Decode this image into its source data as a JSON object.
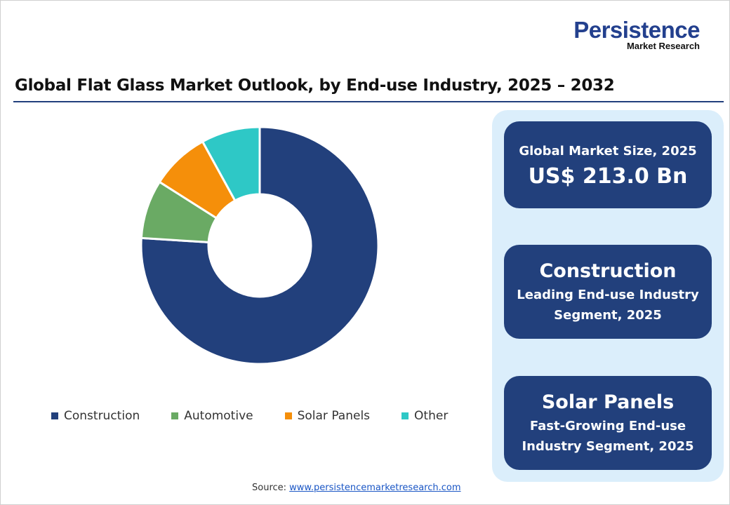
{
  "logo": {
    "line1": "Persistence",
    "line2": "Market Research"
  },
  "title": "Global Flat Glass Market Outlook, by End-use Industry, 2025 – 2032",
  "chart_data": {
    "type": "pie",
    "donut": true,
    "categories": [
      "Construction",
      "Automotive",
      "Solar Panels",
      "Other"
    ],
    "values": [
      76,
      8,
      8,
      8
    ],
    "colors": [
      "#22407c",
      "#6aaa64",
      "#f58f0a",
      "#2ec8c6"
    ],
    "legend": "bottom"
  },
  "cards": [
    {
      "line1": "Global Market Size, 2025",
      "line2": "US$ 213.0 Bn"
    },
    {
      "line1": "Construction",
      "line2": "Leading End-use Industry",
      "line3": "Segment, 2025"
    },
    {
      "line1": "Solar Panels",
      "line2": "Fast-Growing End-use",
      "line3": "Industry Segment, 2025"
    }
  ],
  "source": {
    "label": "Source: ",
    "link": "www.persistencemarketresearch.com"
  }
}
